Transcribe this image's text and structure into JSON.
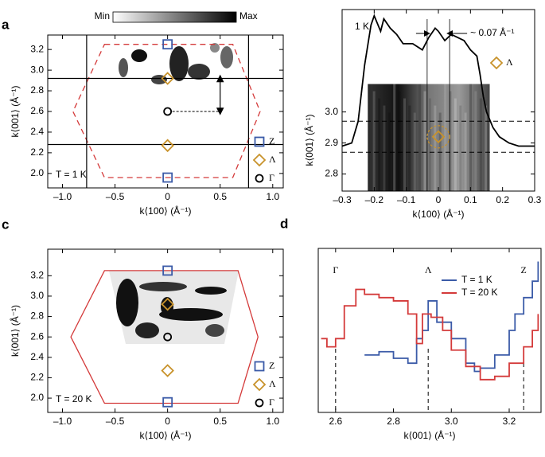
{
  "chart_data": [
    {
      "type": "map",
      "panel_label": "a",
      "colorbar_labels": [
        "Min",
        "Max"
      ],
      "xlabel": "k⟨100⟩ (Å⁻¹)",
      "ylabel": "k⟨001⟩ (Å⁻¹)",
      "xlim": [
        -1.14,
        1.1
      ],
      "ylim": [
        1.86,
        3.34
      ],
      "xticks": [
        {
          "value": -1,
          "label": "–1.0"
        },
        {
          "value": -0.5,
          "label": "–0.5"
        },
        0,
        0.5,
        {
          "value": 1,
          "label": "1.0"
        }
      ],
      "yticks": [
        {
          "value": 2,
          "label": "2.0"
        },
        2.2,
        2.4,
        2.6,
        2.8,
        {
          "value": 3,
          "label": "3.0"
        },
        3.2
      ],
      "zone_boundary": {
        "x": [
          -0.6,
          0.62,
          0.88,
          0.62,
          -0.6,
          -0.9
        ],
        "y": [
          3.25,
          3.25,
          2.6,
          1.96,
          1.96,
          2.6
        ],
        "color": "#d43a3a",
        "dashed": true
      },
      "cut_lines_x": [
        -0.77,
        0.77
      ],
      "cut_lines_y": [
        2.92,
        2.28
      ],
      "arrow": {
        "x": 0.5,
        "y": [
          2.92,
          2.6
        ]
      },
      "series": [
        {
          "name": "Z",
          "color": "#3b5ba8",
          "marker": "square",
          "x": [
            0,
            0
          ],
          "values": [
            3.25,
            1.96
          ]
        },
        {
          "name": "Λ",
          "color": "#c8922a",
          "marker": "diamond",
          "x": [
            0,
            0
          ],
          "values": [
            2.92,
            2.27
          ]
        },
        {
          "name": "Γ",
          "color": "#000000",
          "marker": "circle",
          "x": [
            0
          ],
          "values": [
            2.6
          ]
        }
      ],
      "legend": "lower right",
      "annotation": "T = 1 K",
      "annotation_color": "#3b5ba8"
    },
    {
      "type": "linecut",
      "panel_label": "b",
      "xlabel": "k⟨100⟩ (Å⁻¹)",
      "ylabel": "k⟨001⟩ (Å⁻¹)",
      "xlim": [
        -0.3,
        0.3
      ],
      "ylim": [
        2.745,
        3.33
      ],
      "xticks": [
        {
          "value": -0.3,
          "label": "–0.3"
        },
        {
          "value": -0.2,
          "label": "–0.2"
        },
        {
          "value": -0.1,
          "label": "–0.1"
        },
        0,
        0.1,
        0.2,
        0.3
      ],
      "yticks": [
        2.8,
        2.9,
        {
          "value": 3,
          "label": "3.0"
        }
      ],
      "image_extent": {
        "x": [
          -0.22,
          0.16
        ],
        "y": [
          2.745,
          3.09
        ]
      },
      "hlines": [
        2.97,
        2.87
      ],
      "vlines": [
        -0.035,
        0.035
      ],
      "annotation": "~ 0.07 Å⁻¹",
      "temperature_label": "1 K",
      "temperature_color": "#3b5ba8",
      "profile": {
        "color": "#000000",
        "x": [
          -0.3,
          -0.27,
          -0.25,
          -0.23,
          -0.21,
          -0.2,
          -0.18,
          -0.17,
          -0.15,
          -0.13,
          -0.11,
          -0.08,
          -0.05,
          -0.03,
          -0.01,
          0,
          0.02,
          0.04,
          0.06,
          0.08,
          0.1,
          0.12,
          0.13,
          0.14,
          0.15,
          0.17,
          0.19,
          0.22,
          0.25,
          0.28,
          0.3
        ],
        "values": [
          2.89,
          2.9,
          2.97,
          3.15,
          3.28,
          3.31,
          3.26,
          3.3,
          3.27,
          3.25,
          3.22,
          3.22,
          3.2,
          3.24,
          3.27,
          3.26,
          3.23,
          3.25,
          3.24,
          3.23,
          3.2,
          3.18,
          3.12,
          3.05,
          3.0,
          2.95,
          2.92,
          2.9,
          2.89,
          2.89,
          2.89
        ]
      },
      "series": [
        {
          "name": "Λ",
          "color": "#c8922a",
          "marker": "diamond",
          "x": [
            0
          ],
          "values": [
            2.92
          ]
        }
      ]
    },
    {
      "type": "map",
      "panel_label": "c",
      "xlabel": "k⟨100⟩ (Å⁻¹)",
      "ylabel": "k⟨001⟩ (Å⁻¹)",
      "xlim": [
        -1.14,
        1.1
      ],
      "ylim": [
        1.86,
        3.46
      ],
      "xticks": [
        {
          "value": -1,
          "label": "–1.0"
        },
        {
          "value": -0.5,
          "label": "–0.5"
        },
        0,
        0.5,
        {
          "value": 1,
          "label": "1.0"
        }
      ],
      "yticks": [
        {
          "value": 2,
          "label": "2.0"
        },
        2.2,
        2.4,
        2.6,
        2.8,
        {
          "value": 3,
          "label": "3.0"
        },
        3.2
      ],
      "zone_boundary": {
        "x": [
          -0.6,
          0.67,
          0.86,
          0.67,
          -0.6,
          -0.92
        ],
        "y": [
          3.25,
          3.25,
          2.6,
          1.95,
          1.95,
          2.6
        ],
        "color": "#d43a3a",
        "dashed": false
      },
      "series": [
        {
          "name": "Z",
          "color": "#3b5ba8",
          "marker": "square",
          "x": [
            0,
            0
          ],
          "values": [
            3.25,
            1.96
          ]
        },
        {
          "name": "Λ",
          "color": "#c8922a",
          "marker": "diamond",
          "x": [
            0,
            0
          ],
          "values": [
            2.92,
            2.27
          ]
        },
        {
          "name": "Γ",
          "color": "#000000",
          "marker": "circle",
          "x": [
            0
          ],
          "values": [
            2.6
          ]
        }
      ],
      "legend": "lower right",
      "annotation": "T = 20 K",
      "annotation_color": "#d43a3a"
    },
    {
      "type": "line",
      "panel_label": "d",
      "step": true,
      "xlabel": "k⟨001⟩ (Å⁻¹)",
      "xlim": [
        2.54,
        3.31
      ],
      "ylim": [
        0,
        1
      ],
      "xticks": [
        2.6,
        2.8,
        {
          "value": 3,
          "label": "3.0"
        },
        3.2
      ],
      "vlines": [
        2.6,
        2.92,
        3.25
      ],
      "vline_labels": [
        "Γ",
        "Λ",
        "Z"
      ],
      "legend": "upper right",
      "series": [
        {
          "name": "T = 1 K",
          "color": "#3b5ba8",
          "x": [
            2.7,
            2.75,
            2.8,
            2.85,
            2.88,
            2.9,
            2.92,
            2.95,
            3.0,
            3.05,
            3.08,
            3.1,
            3.15,
            3.2,
            3.22,
            3.25,
            3.28,
            3.3
          ],
          "values": [
            0.35,
            0.37,
            0.33,
            0.3,
            0.45,
            0.5,
            0.68,
            0.55,
            0.45,
            0.3,
            0.25,
            0.27,
            0.35,
            0.5,
            0.6,
            0.7,
            0.8,
            0.92
          ]
        },
        {
          "name": "T = 20 K",
          "color": "#d43a3a",
          "x": [
            2.55,
            2.57,
            2.6,
            2.63,
            2.67,
            2.7,
            2.75,
            2.8,
            2.85,
            2.88,
            2.9,
            2.93,
            2.97,
            3.0,
            3.05,
            3.1,
            3.15,
            3.2,
            3.25,
            3.28,
            3.3
          ],
          "values": [
            0.45,
            0.4,
            0.45,
            0.65,
            0.75,
            0.72,
            0.7,
            0.68,
            0.6,
            0.42,
            0.6,
            0.58,
            0.5,
            0.38,
            0.28,
            0.2,
            0.22,
            0.3,
            0.4,
            0.5,
            0.6
          ]
        }
      ]
    }
  ]
}
